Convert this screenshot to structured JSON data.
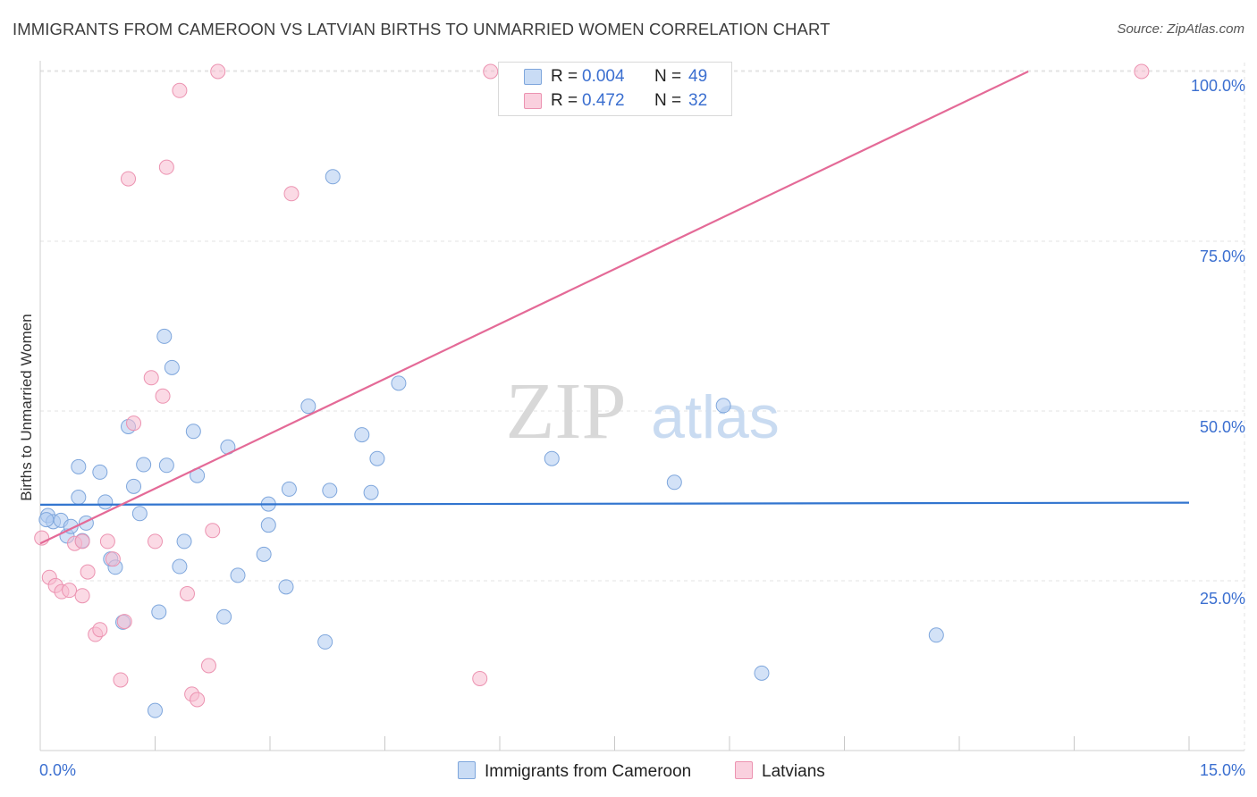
{
  "title": "IMMIGRANTS FROM CAMEROON VS LATVIAN BIRTHS TO UNMARRIED WOMEN CORRELATION CHART",
  "source": "Source: ZipAtlas.com",
  "watermark": {
    "zip": "ZIP",
    "atlas": "atlas"
  },
  "legend": {
    "rows": [
      {
        "r_label": "R =",
        "r_value": "0.004",
        "n_label": "N =",
        "n_value": "49"
      },
      {
        "r_label": "R =",
        "r_value": "0.472",
        "n_label": "N =",
        "n_value": "32"
      }
    ]
  },
  "colors": {
    "blue_fill": "#aecbf0",
    "blue_stroke": "#7ea6dc",
    "blue_line": "#3275cf",
    "pink_fill": "#f7bcd0",
    "pink_stroke": "#ec93b1",
    "pink_line": "#e46a97",
    "accent_text": "#3b6fd0"
  },
  "chart_data": {
    "type": "scatter",
    "title": "IMMIGRANTS FROM CAMEROON VS LATVIAN BIRTHS TO UNMARRIED WOMEN CORRELATION CHART",
    "xlabel": "",
    "ylabel": "Births to Unmarried Women",
    "xlim": [
      0,
      15
    ],
    "ylim": [
      0,
      102
    ],
    "x_tick_labels": [
      "0.0%",
      "15.0%"
    ],
    "y_ticks": [
      25,
      50,
      75,
      100
    ],
    "y_tick_labels": [
      "25.0%",
      "50.0%",
      "75.0%",
      "100.0%"
    ],
    "series": [
      {
        "name": "Immigrants from Cameroon",
        "color": "blue",
        "R": 0.004,
        "N": 49,
        "trend": {
          "x0": 0,
          "y0": 36.2,
          "x1": 15,
          "y1": 36.5
        },
        "points": [
          [
            0.1,
            34.6
          ],
          [
            0.17,
            33.7
          ],
          [
            0.27,
            33.9
          ],
          [
            0.35,
            31.6
          ],
          [
            0.4,
            33
          ],
          [
            0.5,
            37.3
          ],
          [
            0.55,
            30.9
          ],
          [
            0.6,
            33.5
          ],
          [
            0.5,
            41.8
          ],
          [
            0.78,
            41
          ],
          [
            0.85,
            36.6
          ],
          [
            0.92,
            28.2
          ],
          [
            0.98,
            27
          ],
          [
            1.08,
            18.9
          ],
          [
            1.15,
            47.7
          ],
          [
            1.22,
            38.9
          ],
          [
            1.3,
            34.9
          ],
          [
            1.35,
            42.1
          ],
          [
            1.55,
            20.4
          ],
          [
            1.62,
            61
          ],
          [
            1.65,
            42
          ],
          [
            1.72,
            56.4
          ],
          [
            1.82,
            27.1
          ],
          [
            1.88,
            30.8
          ],
          [
            2.0,
            47
          ],
          [
            2.05,
            40.5
          ],
          [
            2.4,
            19.7
          ],
          [
            2.45,
            44.7
          ],
          [
            2.58,
            25.8
          ],
          [
            2.98,
            33.2
          ],
          [
            2.98,
            36.3
          ],
          [
            2.92,
            28.9
          ],
          [
            3.21,
            24.1
          ],
          [
            3.25,
            38.5
          ],
          [
            3.5,
            50.7
          ],
          [
            3.72,
            16
          ],
          [
            3.78,
            38.3
          ],
          [
            3.82,
            84.5
          ],
          [
            4.2,
            46.5
          ],
          [
            4.32,
            38
          ],
          [
            4.4,
            43
          ],
          [
            4.68,
            54.1
          ],
          [
            6.68,
            43
          ],
          [
            8.28,
            39.5
          ],
          [
            8.92,
            50.8
          ],
          [
            9.42,
            11.4
          ],
          [
            11.7,
            17
          ],
          [
            1.5,
            5.9
          ],
          [
            0.08,
            34
          ]
        ]
      },
      {
        "name": "Latvians",
        "color": "pink",
        "R": 0.472,
        "N": 32,
        "trend": {
          "x0": 0,
          "y0": 30.5,
          "x1": 12.9,
          "y1": 100
        },
        "points": [
          [
            0.02,
            31.3
          ],
          [
            0.12,
            25.5
          ],
          [
            0.2,
            24.3
          ],
          [
            0.28,
            23.4
          ],
          [
            0.38,
            23.6
          ],
          [
            0.45,
            30.5
          ],
          [
            0.55,
            30.8
          ],
          [
            0.55,
            22.8
          ],
          [
            0.62,
            26.3
          ],
          [
            0.72,
            17.1
          ],
          [
            0.78,
            17.8
          ],
          [
            0.88,
            30.8
          ],
          [
            0.95,
            28.2
          ],
          [
            1.05,
            10.4
          ],
          [
            1.1,
            19
          ],
          [
            1.15,
            84.2
          ],
          [
            1.22,
            48.2
          ],
          [
            1.45,
            54.9
          ],
          [
            1.5,
            30.8
          ],
          [
            1.6,
            52.2
          ],
          [
            1.65,
            85.9
          ],
          [
            1.82,
            97.2
          ],
          [
            1.92,
            23.1
          ],
          [
            1.98,
            8.3
          ],
          [
            2.05,
            7.5
          ],
          [
            2.2,
            12.5
          ],
          [
            2.25,
            32.4
          ],
          [
            2.32,
            100
          ],
          [
            3.28,
            82
          ],
          [
            5.74,
            10.6
          ],
          [
            5.88,
            100
          ],
          [
            14.38,
            100
          ]
        ]
      }
    ]
  },
  "bottom_legend": [
    {
      "label": "Immigrants from Cameroon"
    },
    {
      "label": "Latvians"
    }
  ]
}
